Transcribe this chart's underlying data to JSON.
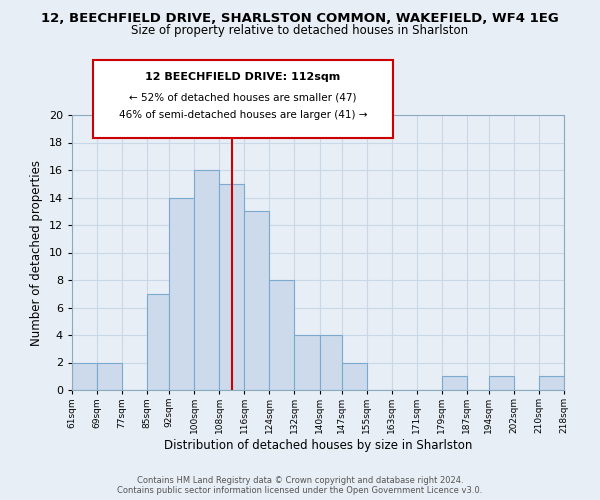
{
  "title_line1": "12, BEECHFIELD DRIVE, SHARLSTON COMMON, WAKEFIELD, WF4 1EG",
  "title_line2": "Size of property relative to detached houses in Sharlston",
  "xlabel": "Distribution of detached houses by size in Sharlston",
  "ylabel": "Number of detached properties",
  "bin_edges": [
    61,
    69,
    77,
    85,
    92,
    100,
    108,
    116,
    124,
    132,
    140,
    147,
    155,
    163,
    171,
    179,
    187,
    194,
    202,
    210,
    218
  ],
  "counts": [
    2,
    2,
    0,
    7,
    14,
    16,
    15,
    13,
    8,
    4,
    4,
    2,
    0,
    0,
    0,
    1,
    0,
    1,
    0,
    1
  ],
  "bar_color": "#ccdaeb",
  "bar_edge_color": "#7aaad0",
  "vline_x": 112,
  "vline_color": "#cc0000",
  "ylim": [
    0,
    20
  ],
  "yticks": [
    0,
    2,
    4,
    6,
    8,
    10,
    12,
    14,
    16,
    18,
    20
  ],
  "tick_labels": [
    "61sqm",
    "69sqm",
    "77sqm",
    "85sqm",
    "92sqm",
    "100sqm",
    "108sqm",
    "116sqm",
    "124sqm",
    "132sqm",
    "140sqm",
    "147sqm",
    "155sqm",
    "163sqm",
    "171sqm",
    "179sqm",
    "187sqm",
    "194sqm",
    "202sqm",
    "210sqm",
    "218sqm"
  ],
  "annotation_title": "12 BEECHFIELD DRIVE: 112sqm",
  "annotation_line2": "← 52% of detached houses are smaller (47)",
  "annotation_line3": "46% of semi-detached houses are larger (41) →",
  "footer_line1": "Contains HM Land Registry data © Crown copyright and database right 2024.",
  "footer_line2": "Contains public sector information licensed under the Open Government Licence v3.0.",
  "grid_color": "#c8d8e8",
  "background_color": "#e8eef5"
}
